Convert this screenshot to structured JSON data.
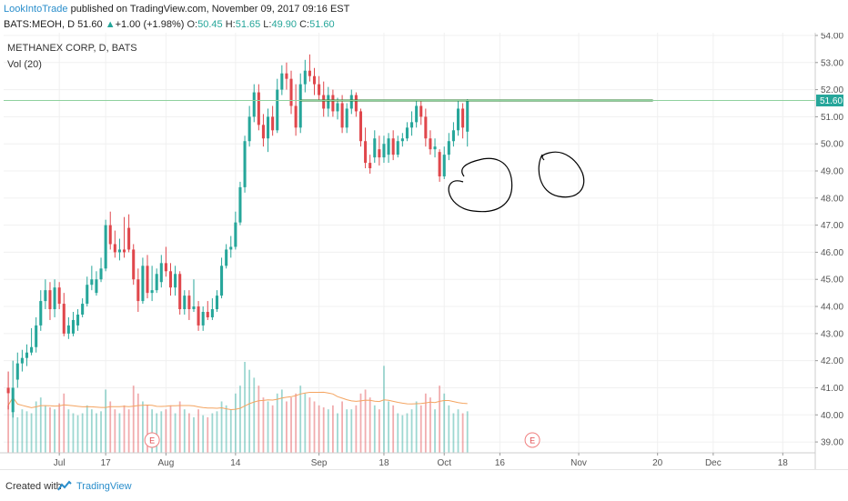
{
  "header": {
    "publisher": "LookIntoTrade",
    "published_text": "published on TradingView.com, November 09, 2017 09:16 EST",
    "symbol": "BATS:MEOH, D",
    "last": "51.60",
    "change_arrow": "▲",
    "change": "+1.00 (+1.98%)",
    "o_label": "O:",
    "o": "50.45",
    "h_label": "H:",
    "h": "51.65",
    "l_label": "L:",
    "l": "49.90",
    "c_label": "C:",
    "c": "51.60"
  },
  "legend": {
    "title": "METHANEX CORP, D, BATS",
    "volume": "Vol (20)"
  },
  "footer": {
    "created_with": "Created with",
    "brand": "TradingView"
  },
  "chart_data": {
    "type": "candlestick",
    "title": "METHANEX CORP, D, BATS",
    "last_price_label": "51.60",
    "ylim": [
      38.6,
      54.1
    ],
    "y_ticks": [
      "54.00",
      "53.00",
      "52.00",
      "51.00",
      "50.00",
      "49.00",
      "48.00",
      "47.00",
      "46.00",
      "45.00",
      "44.00",
      "43.00",
      "42.00",
      "41.00",
      "40.00",
      "39.00"
    ],
    "x_ticks": [
      {
        "label": "Jul",
        "x": 12
      },
      {
        "label": "17",
        "x": 22
      },
      {
        "label": "Aug",
        "x": 35
      },
      {
        "label": "14",
        "x": 50
      },
      {
        "label": "Sep",
        "x": 68
      },
      {
        "label": "18",
        "x": 82
      },
      {
        "label": "Oct",
        "x": 95
      },
      {
        "label": "16",
        "x": 107
      },
      {
        "label": "Nov",
        "x": 124
      },
      {
        "label": "20",
        "x": 141
      },
      {
        "label": "Dec",
        "x": 153
      },
      {
        "label": "18",
        "x": 168
      }
    ],
    "resistance_level": 51.6,
    "colors": {
      "up": "#26a69a",
      "down": "#e0474c",
      "vol_ma": "#f4a460",
      "resistance": "#2e7d32",
      "annotation": "#000000"
    },
    "candles": [
      {
        "x": 1,
        "o": 41.0,
        "h": 41.6,
        "l": 40.2,
        "c": 40.8,
        "v": 1200
      },
      {
        "x": 2,
        "o": 40.1,
        "h": 42.0,
        "l": 39.9,
        "c": 41.0,
        "v": 1600
      },
      {
        "x": 3,
        "o": 41.3,
        "h": 42.3,
        "l": 41.0,
        "c": 41.9,
        "v": 900
      },
      {
        "x": 4,
        "o": 41.9,
        "h": 42.4,
        "l": 41.6,
        "c": 42.1,
        "v": 1100
      },
      {
        "x": 5,
        "o": 42.1,
        "h": 42.6,
        "l": 41.8,
        "c": 42.3,
        "v": 1050
      },
      {
        "x": 6,
        "o": 42.3,
        "h": 43.2,
        "l": 42.2,
        "c": 42.5,
        "v": 1000
      },
      {
        "x": 7,
        "o": 42.5,
        "h": 43.6,
        "l": 42.3,
        "c": 43.3,
        "v": 1300
      },
      {
        "x": 8,
        "o": 43.3,
        "h": 44.6,
        "l": 43.1,
        "c": 44.2,
        "v": 1400
      },
      {
        "x": 9,
        "o": 44.2,
        "h": 45.0,
        "l": 43.9,
        "c": 44.6,
        "v": 1200
      },
      {
        "x": 10,
        "o": 44.6,
        "h": 44.9,
        "l": 43.5,
        "c": 43.9,
        "v": 1150
      },
      {
        "x": 11,
        "o": 43.9,
        "h": 45.0,
        "l": 43.6,
        "c": 44.7,
        "v": 1100
      },
      {
        "x": 12,
        "o": 44.7,
        "h": 44.9,
        "l": 43.9,
        "c": 44.1,
        "v": 1250
      },
      {
        "x": 13,
        "o": 44.1,
        "h": 44.5,
        "l": 42.9,
        "c": 43.0,
        "v": 1500
      },
      {
        "x": 14,
        "o": 43.0,
        "h": 43.6,
        "l": 42.8,
        "c": 43.3,
        "v": 1100
      },
      {
        "x": 15,
        "o": 43.0,
        "h": 43.8,
        "l": 42.9,
        "c": 43.5,
        "v": 1000
      },
      {
        "x": 16,
        "o": 43.3,
        "h": 43.9,
        "l": 43.1,
        "c": 43.7,
        "v": 950
      },
      {
        "x": 17,
        "o": 43.7,
        "h": 44.3,
        "l": 43.6,
        "c": 44.1,
        "v": 1000
      },
      {
        "x": 18,
        "o": 44.1,
        "h": 45.1,
        "l": 44.0,
        "c": 44.8,
        "v": 1200
      },
      {
        "x": 19,
        "o": 44.8,
        "h": 45.5,
        "l": 44.6,
        "c": 45.0,
        "v": 1100
      },
      {
        "x": 20,
        "o": 44.5,
        "h": 45.3,
        "l": 44.4,
        "c": 45.0,
        "v": 1000
      },
      {
        "x": 21,
        "o": 45.0,
        "h": 45.8,
        "l": 44.9,
        "c": 45.4,
        "v": 1050
      },
      {
        "x": 22,
        "o": 45.4,
        "h": 47.2,
        "l": 45.3,
        "c": 47.0,
        "v": 1600
      },
      {
        "x": 23,
        "o": 47.0,
        "h": 47.5,
        "l": 46.1,
        "c": 46.3,
        "v": 1300
      },
      {
        "x": 24,
        "o": 46.3,
        "h": 46.8,
        "l": 45.8,
        "c": 46.0,
        "v": 1100
      },
      {
        "x": 25,
        "o": 46.0,
        "h": 46.5,
        "l": 45.7,
        "c": 46.1,
        "v": 1000
      },
      {
        "x": 26,
        "o": 46.1,
        "h": 47.3,
        "l": 45.8,
        "c": 46.0,
        "v": 1200
      },
      {
        "x": 27,
        "o": 46.9,
        "h": 47.4,
        "l": 46.0,
        "c": 46.1,
        "v": 1100
      },
      {
        "x": 28,
        "o": 46.1,
        "h": 46.3,
        "l": 44.8,
        "c": 45.0,
        "v": 1700
      },
      {
        "x": 29,
        "o": 45.0,
        "h": 45.4,
        "l": 43.8,
        "c": 44.2,
        "v": 1500
      },
      {
        "x": 30,
        "o": 44.2,
        "h": 45.8,
        "l": 44.1,
        "c": 45.5,
        "v": 1300
      },
      {
        "x": 31,
        "o": 45.5,
        "h": 45.9,
        "l": 44.3,
        "c": 44.5,
        "v": 1200
      },
      {
        "x": 32,
        "o": 44.5,
        "h": 45.5,
        "l": 44.2,
        "c": 44.6,
        "v": 1100
      },
      {
        "x": 33,
        "o": 44.6,
        "h": 45.4,
        "l": 44.5,
        "c": 45.2,
        "v": 1000
      },
      {
        "x": 34,
        "o": 44.9,
        "h": 45.9,
        "l": 44.7,
        "c": 45.6,
        "v": 1050
      },
      {
        "x": 35,
        "o": 45.6,
        "h": 46.2,
        "l": 45.1,
        "c": 45.3,
        "v": 1100
      },
      {
        "x": 36,
        "o": 45.3,
        "h": 45.6,
        "l": 44.4,
        "c": 44.7,
        "v": 1200
      },
      {
        "x": 37,
        "o": 44.7,
        "h": 45.5,
        "l": 44.4,
        "c": 45.2,
        "v": 1000
      },
      {
        "x": 38,
        "o": 45.2,
        "h": 45.3,
        "l": 43.7,
        "c": 43.9,
        "v": 1300
      },
      {
        "x": 39,
        "o": 43.9,
        "h": 44.6,
        "l": 43.7,
        "c": 44.4,
        "v": 1100
      },
      {
        "x": 40,
        "o": 44.4,
        "h": 44.6,
        "l": 43.5,
        "c": 43.9,
        "v": 1000
      },
      {
        "x": 41,
        "o": 43.9,
        "h": 45.0,
        "l": 43.8,
        "c": 44.0,
        "v": 900
      },
      {
        "x": 42,
        "o": 44.0,
        "h": 44.2,
        "l": 43.1,
        "c": 43.3,
        "v": 1100
      },
      {
        "x": 43,
        "o": 43.3,
        "h": 44.0,
        "l": 43.1,
        "c": 43.8,
        "v": 950
      },
      {
        "x": 44,
        "o": 43.8,
        "h": 44.2,
        "l": 43.5,
        "c": 43.6,
        "v": 900
      },
      {
        "x": 45,
        "o": 43.6,
        "h": 44.3,
        "l": 43.5,
        "c": 43.9,
        "v": 1000
      },
      {
        "x": 46,
        "o": 43.9,
        "h": 44.6,
        "l": 43.8,
        "c": 44.4,
        "v": 1050
      },
      {
        "x": 47,
        "o": 44.4,
        "h": 45.8,
        "l": 44.3,
        "c": 45.5,
        "v": 1300
      },
      {
        "x": 48,
        "o": 45.5,
        "h": 46.3,
        "l": 45.4,
        "c": 46.1,
        "v": 1200
      },
      {
        "x": 49,
        "o": 46.1,
        "h": 46.6,
        "l": 45.8,
        "c": 46.2,
        "v": 1100
      },
      {
        "x": 50,
        "o": 46.2,
        "h": 47.5,
        "l": 46.1,
        "c": 47.1,
        "v": 1500
      },
      {
        "x": 51,
        "o": 47.1,
        "h": 48.6,
        "l": 47.0,
        "c": 48.4,
        "v": 1700
      },
      {
        "x": 52,
        "o": 48.4,
        "h": 50.3,
        "l": 48.2,
        "c": 50.1,
        "v": 2300
      },
      {
        "x": 53,
        "o": 50.1,
        "h": 51.4,
        "l": 49.9,
        "c": 51.0,
        "v": 2100
      },
      {
        "x": 54,
        "o": 51.0,
        "h": 52.2,
        "l": 50.8,
        "c": 51.9,
        "v": 1900
      },
      {
        "x": 55,
        "o": 51.9,
        "h": 52.2,
        "l": 50.5,
        "c": 50.7,
        "v": 1700
      },
      {
        "x": 56,
        "o": 50.7,
        "h": 51.1,
        "l": 49.9,
        "c": 50.2,
        "v": 1400
      },
      {
        "x": 57,
        "o": 50.2,
        "h": 51.3,
        "l": 49.7,
        "c": 51.0,
        "v": 1300
      },
      {
        "x": 58,
        "o": 51.0,
        "h": 51.4,
        "l": 50.3,
        "c": 50.5,
        "v": 1200
      },
      {
        "x": 59,
        "o": 50.5,
        "h": 52.4,
        "l": 50.4,
        "c": 52.0,
        "v": 1500
      },
      {
        "x": 60,
        "o": 52.0,
        "h": 52.9,
        "l": 51.8,
        "c": 52.6,
        "v": 1600
      },
      {
        "x": 61,
        "o": 52.6,
        "h": 53.0,
        "l": 52.0,
        "c": 52.4,
        "v": 1300
      },
      {
        "x": 62,
        "o": 52.4,
        "h": 52.7,
        "l": 51.1,
        "c": 51.4,
        "v": 1400
      },
      {
        "x": 63,
        "o": 51.4,
        "h": 52.2,
        "l": 50.3,
        "c": 50.6,
        "v": 1500
      },
      {
        "x": 64,
        "o": 50.6,
        "h": 52.6,
        "l": 50.4,
        "c": 52.2,
        "v": 1700
      },
      {
        "x": 65,
        "o": 52.2,
        "h": 53.1,
        "l": 51.9,
        "c": 52.7,
        "v": 1500
      },
      {
        "x": 66,
        "o": 52.7,
        "h": 53.3,
        "l": 52.3,
        "c": 52.5,
        "v": 1400
      },
      {
        "x": 67,
        "o": 52.5,
        "h": 52.8,
        "l": 51.8,
        "c": 52.2,
        "v": 1300
      },
      {
        "x": 68,
        "o": 52.2,
        "h": 52.5,
        "l": 51.6,
        "c": 51.8,
        "v": 1200
      },
      {
        "x": 69,
        "o": 51.8,
        "h": 52.3,
        "l": 51.0,
        "c": 51.3,
        "v": 1150
      },
      {
        "x": 70,
        "o": 51.3,
        "h": 52.1,
        "l": 51.0,
        "c": 51.8,
        "v": 1100
      },
      {
        "x": 71,
        "o": 51.8,
        "h": 52.0,
        "l": 51.0,
        "c": 51.2,
        "v": 1200
      },
      {
        "x": 72,
        "o": 51.2,
        "h": 51.7,
        "l": 50.9,
        "c": 51.5,
        "v": 1000
      },
      {
        "x": 73,
        "o": 51.5,
        "h": 51.8,
        "l": 50.4,
        "c": 50.6,
        "v": 1300
      },
      {
        "x": 74,
        "o": 50.6,
        "h": 51.5,
        "l": 50.4,
        "c": 51.3,
        "v": 1100
      },
      {
        "x": 75,
        "o": 51.3,
        "h": 52.0,
        "l": 51.1,
        "c": 51.8,
        "v": 1100
      },
      {
        "x": 76,
        "o": 51.8,
        "h": 51.9,
        "l": 51.0,
        "c": 51.2,
        "v": 1200
      },
      {
        "x": 77,
        "o": 51.2,
        "h": 51.3,
        "l": 49.9,
        "c": 50.1,
        "v": 1500
      },
      {
        "x": 78,
        "o": 50.1,
        "h": 50.6,
        "l": 49.1,
        "c": 49.3,
        "v": 1600
      },
      {
        "x": 79,
        "o": 49.3,
        "h": 49.6,
        "l": 48.9,
        "c": 49.1,
        "v": 1400
      },
      {
        "x": 80,
        "o": 49.5,
        "h": 50.5,
        "l": 49.3,
        "c": 50.2,
        "v": 1200
      },
      {
        "x": 81,
        "o": 49.8,
        "h": 50.3,
        "l": 49.2,
        "c": 49.5,
        "v": 1100
      },
      {
        "x": 82,
        "o": 49.5,
        "h": 50.3,
        "l": 49.3,
        "c": 50.0,
        "v": 2200
      },
      {
        "x": 83,
        "o": 49.6,
        "h": 50.4,
        "l": 49.3,
        "c": 50.2,
        "v": 1300
      },
      {
        "x": 84,
        "o": 50.2,
        "h": 50.5,
        "l": 49.4,
        "c": 49.6,
        "v": 1200
      },
      {
        "x": 85,
        "o": 49.6,
        "h": 50.3,
        "l": 49.5,
        "c": 50.1,
        "v": 1000
      },
      {
        "x": 86,
        "o": 50.1,
        "h": 50.4,
        "l": 49.9,
        "c": 50.2,
        "v": 950
      },
      {
        "x": 87,
        "o": 50.2,
        "h": 50.8,
        "l": 50.1,
        "c": 50.6,
        "v": 1000
      },
      {
        "x": 88,
        "o": 50.6,
        "h": 51.2,
        "l": 50.3,
        "c": 50.8,
        "v": 1100
      },
      {
        "x": 89,
        "o": 50.8,
        "h": 51.6,
        "l": 50.6,
        "c": 51.4,
        "v": 1300
      },
      {
        "x": 90,
        "o": 51.4,
        "h": 51.6,
        "l": 50.7,
        "c": 51.0,
        "v": 1200
      },
      {
        "x": 91,
        "o": 51.0,
        "h": 51.3,
        "l": 49.9,
        "c": 50.2,
        "v": 1500
      },
      {
        "x": 92,
        "o": 50.2,
        "h": 50.5,
        "l": 49.6,
        "c": 49.8,
        "v": 1400
      },
      {
        "x": 93,
        "o": 49.8,
        "h": 50.2,
        "l": 49.5,
        "c": 49.9,
        "v": 1100
      },
      {
        "x": 94,
        "o": 49.7,
        "h": 49.8,
        "l": 48.6,
        "c": 48.8,
        "v": 1700
      },
      {
        "x": 95,
        "o": 48.8,
        "h": 49.9,
        "l": 48.7,
        "c": 49.6,
        "v": 1500
      },
      {
        "x": 96,
        "o": 49.6,
        "h": 50.4,
        "l": 49.4,
        "c": 50.1,
        "v": 1200
      },
      {
        "x": 97,
        "o": 50.1,
        "h": 50.8,
        "l": 49.9,
        "c": 50.5,
        "v": 1000
      },
      {
        "x": 98,
        "o": 50.5,
        "h": 51.6,
        "l": 50.3,
        "c": 51.3,
        "v": 1100
      },
      {
        "x": 99,
        "o": 51.3,
        "h": 51.5,
        "l": 50.2,
        "c": 50.6,
        "v": 1000
      },
      {
        "x": 100,
        "o": 50.45,
        "h": 51.65,
        "l": 49.9,
        "c": 51.6,
        "v": 1050
      }
    ]
  }
}
